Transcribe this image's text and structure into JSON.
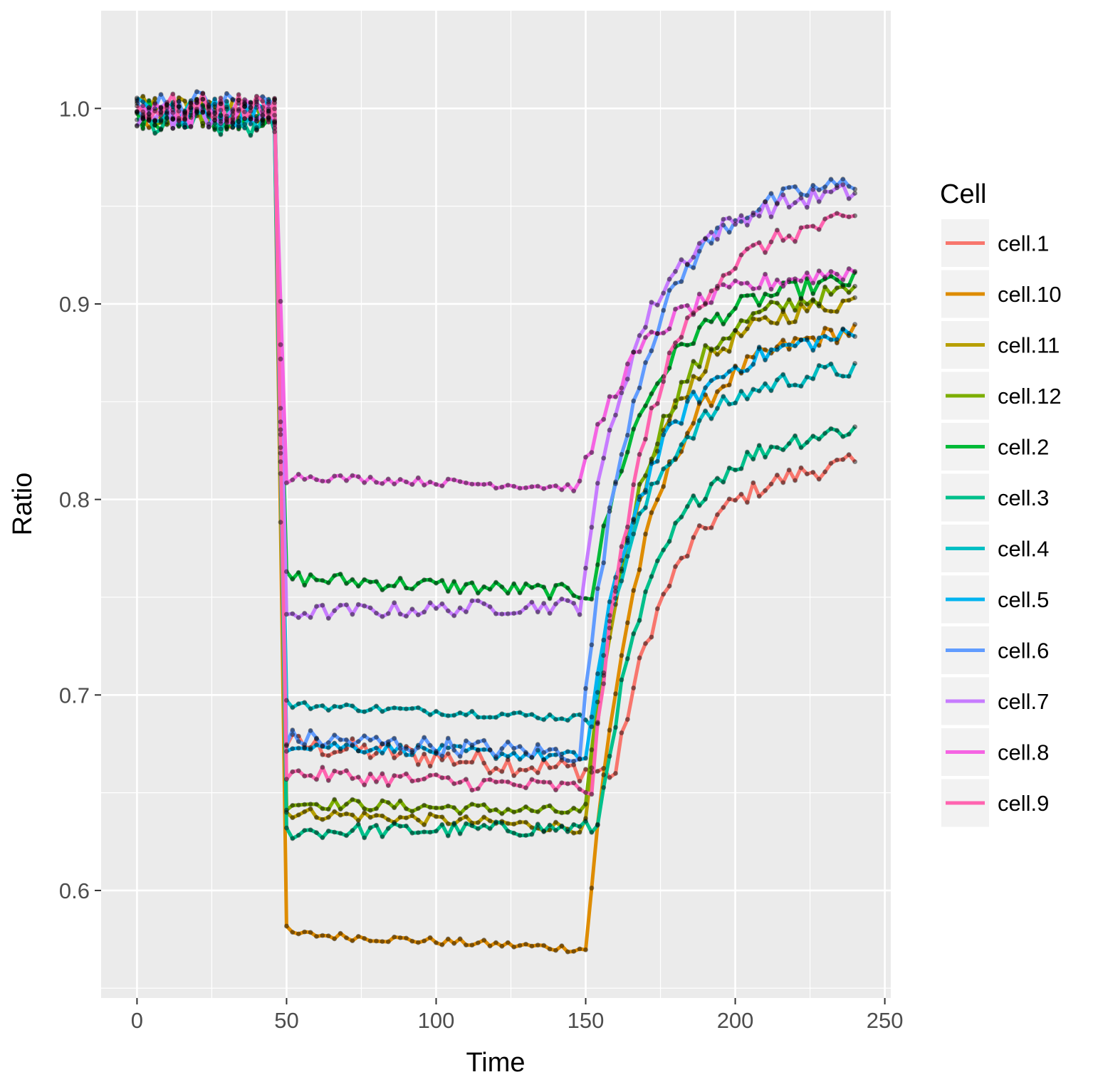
{
  "chart_data": {
    "type": "line",
    "title": "",
    "xlabel": "Time",
    "ylabel": "Ratio",
    "xlim": [
      -12,
      252
    ],
    "ylim": [
      0.545,
      1.05
    ],
    "xticks": [
      0,
      50,
      100,
      150,
      200,
      250
    ],
    "yticks": [
      0.6,
      0.7,
      0.8,
      0.9,
      1.0
    ],
    "xtick_labels": [
      "0",
      "50",
      "100",
      "150",
      "200",
      "250"
    ],
    "ytick_labels": [
      "0.6",
      "0.7",
      "0.8",
      "0.9",
      "1.0"
    ],
    "grid": true,
    "legend": {
      "title": "Cell",
      "position": "right"
    },
    "sample_interval": 2,
    "series": [
      {
        "name": "cell.1",
        "color": "#F8766D",
        "base": 0.995,
        "drop": 0.675,
        "drop_end": 0.66,
        "rise_start": 160,
        "recover": 0.848,
        "noise": 0.006
      },
      {
        "name": "cell.10",
        "color": "#DE8C00",
        "base": 0.998,
        "drop": 0.578,
        "drop_end": 0.57,
        "rise_start": 150,
        "recover": 0.915,
        "noise": 0.002
      },
      {
        "name": "cell.11",
        "color": "#B79F00",
        "base": 0.999,
        "drop": 0.64,
        "drop_end": 0.632,
        "rise_start": 150,
        "recover": 0.93,
        "noise": 0.003
      },
      {
        "name": "cell.12",
        "color": "#7CAE00",
        "base": 0.998,
        "drop": 0.645,
        "drop_end": 0.64,
        "rise_start": 150,
        "recover": 0.935,
        "noise": 0.003
      },
      {
        "name": "cell.2",
        "color": "#00BA38",
        "base": 0.997,
        "drop": 0.76,
        "drop_end": 0.752,
        "rise_start": 152,
        "recover": 0.94,
        "noise": 0.004
      },
      {
        "name": "cell.3",
        "color": "#00C08B",
        "base": 0.992,
        "drop": 0.63,
        "drop_end": 0.632,
        "rise_start": 154,
        "recover": 0.865,
        "noise": 0.004
      },
      {
        "name": "cell.4",
        "color": "#00BFC4",
        "base": 0.997,
        "drop": 0.695,
        "drop_end": 0.688,
        "rise_start": 152,
        "recover": 0.895,
        "noise": 0.002
      },
      {
        "name": "cell.5",
        "color": "#00B4F0",
        "base": 0.998,
        "drop": 0.675,
        "drop_end": 0.668,
        "rise_start": 150,
        "recover": 0.912,
        "noise": 0.003
      },
      {
        "name": "cell.6",
        "color": "#619CFF",
        "base": 1.002,
        "drop": 0.678,
        "drop_end": 0.67,
        "rise_start": 148,
        "recover": 0.99,
        "noise": 0.005
      },
      {
        "name": "cell.7",
        "color": "#C77CFF",
        "base": 0.997,
        "drop": 0.742,
        "drop_end": 0.746,
        "rise_start": 148,
        "recover": 0.985,
        "noise": 0.004
      },
      {
        "name": "cell.8",
        "color": "#F564E3",
        "base": 0.998,
        "drop": 0.812,
        "drop_end": 0.806,
        "rise_start": 148,
        "recover": 0.944,
        "noise": 0.002
      },
      {
        "name": "cell.9",
        "color": "#FF64B0",
        "base": 1.0,
        "drop": 0.66,
        "drop_end": 0.652,
        "rise_start": 152,
        "recover": 0.972,
        "noise": 0.004
      }
    ]
  }
}
